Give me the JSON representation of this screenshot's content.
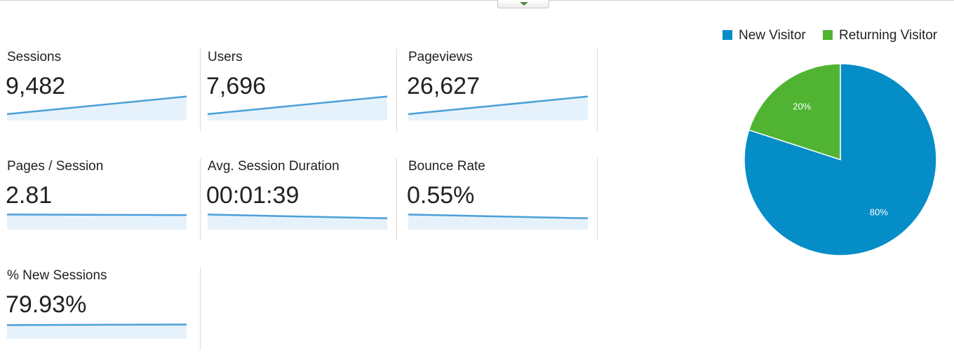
{
  "metrics": [
    {
      "label": "Sessions",
      "value": "9,482",
      "trend": [
        0.25,
        0.95
      ]
    },
    {
      "label": "Users",
      "value": "7,696",
      "trend": [
        0.25,
        0.95
      ]
    },
    {
      "label": "Pageviews",
      "value": "26,627",
      "trend": [
        0.25,
        0.95
      ]
    },
    {
      "label": "Pages / Session",
      "value": "2.81",
      "trend": [
        0.6,
        0.58
      ]
    },
    {
      "label": "Avg. Session Duration",
      "value": "00:01:39",
      "trend": [
        0.6,
        0.45
      ]
    },
    {
      "label": "Bounce Rate",
      "value": "0.55%",
      "trend": [
        0.6,
        0.45
      ]
    },
    {
      "label": "% New Sessions",
      "value": "79.93%",
      "trend": [
        0.55,
        0.57
      ]
    }
  ],
  "chart_data": {
    "type": "pie",
    "legend_position": "top-right",
    "slices": [
      {
        "name": "New Visitor",
        "value": 80,
        "label": "80%",
        "color": "#058dc7"
      },
      {
        "name": "Returning Visitor",
        "value": 20,
        "label": "20%",
        "color": "#50b432"
      }
    ]
  },
  "colors": {
    "sparkline": "#4a9fd8",
    "sparkline_fill": "#e6f2fb",
    "divider": "#d9d9d9"
  },
  "icons": {
    "collapse_toggle": "chevron-down-icon"
  }
}
